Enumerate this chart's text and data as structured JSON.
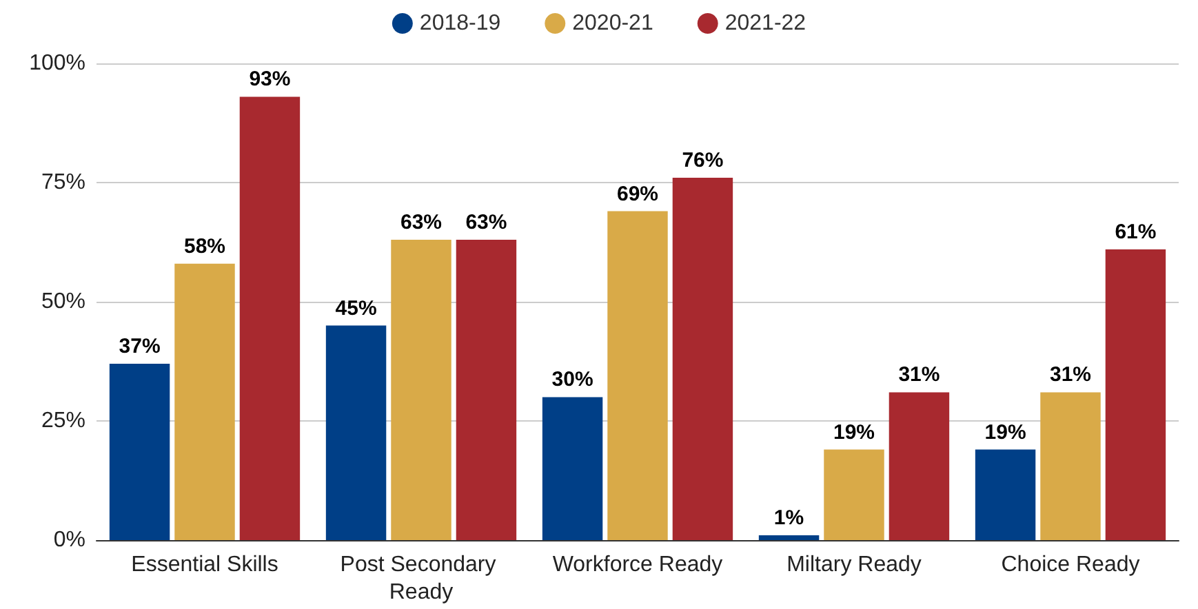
{
  "chart_data": {
    "type": "bar",
    "categories": [
      "Essential Skills",
      "Post Secondary Ready",
      "Workforce Ready",
      "Miltary Ready",
      "Choice Ready"
    ],
    "series": [
      {
        "name": "2018-19",
        "color": "#003f87",
        "values": [
          37,
          45,
          30,
          1,
          19
        ],
        "value_labels": [
          "37%",
          "45%",
          "30%",
          "1%",
          "19%"
        ]
      },
      {
        "name": "2020-21",
        "color": "#d9aa48",
        "values": [
          58,
          63,
          69,
          19,
          31
        ],
        "value_labels": [
          "58%",
          "63%",
          "69%",
          "19%",
          "31%"
        ]
      },
      {
        "name": "2021-22",
        "color": "#a8292f",
        "values": [
          93,
          63,
          76,
          31,
          61
        ],
        "value_labels": [
          "93%",
          "63%",
          "76%",
          "31%",
          "61%"
        ]
      }
    ],
    "ylim": [
      0,
      100
    ],
    "yticks": [
      {
        "value": 0,
        "label": "0%"
      },
      {
        "value": 25,
        "label": "25%"
      },
      {
        "value": 50,
        "label": "50%"
      },
      {
        "value": 75,
        "label": "75%"
      },
      {
        "value": 100,
        "label": "100%"
      }
    ],
    "grid": "y",
    "legend": "top"
  }
}
